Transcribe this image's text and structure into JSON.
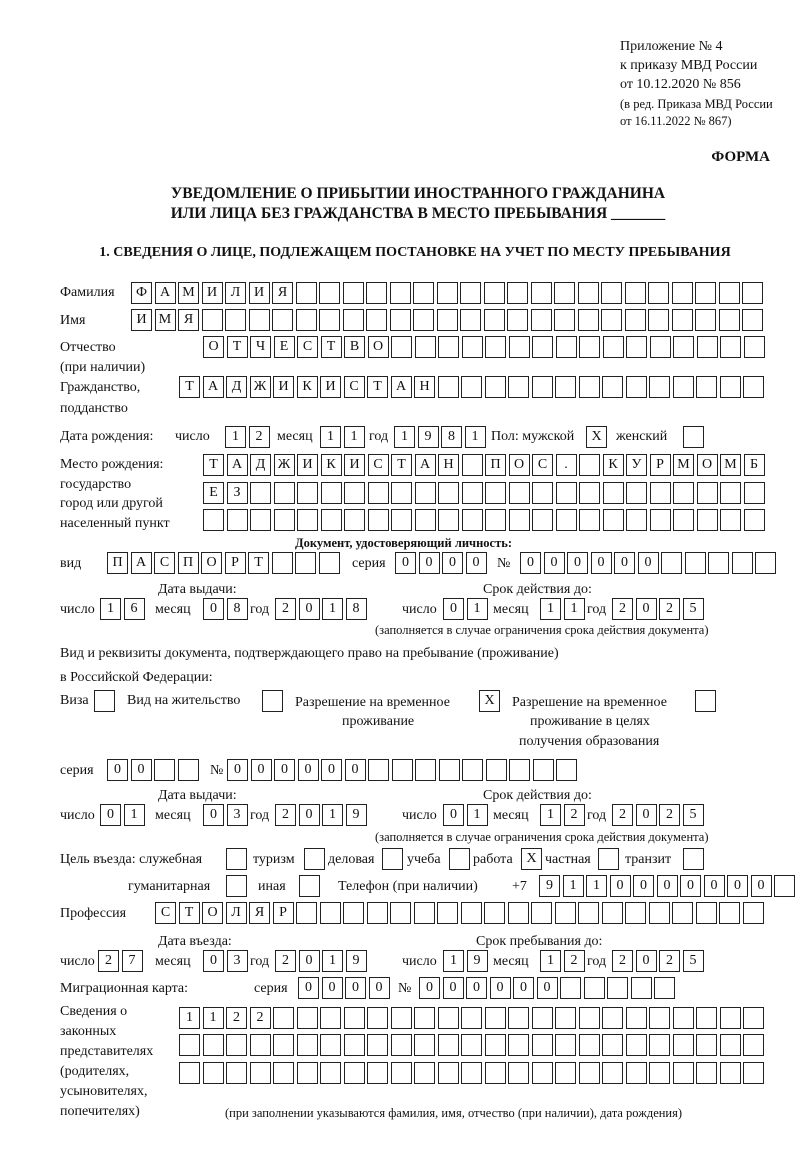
{
  "header": {
    "appendix": "Приложение № 4",
    "order": "к приказу МВД России",
    "order_date": "от 10.12.2020 № 856",
    "edition1": "(в ред. Приказа МВД России",
    "edition2": "от 16.11.2022 № 867)",
    "form": "ФОРМА",
    "title1": "УВЕДОМЛЕНИЕ О ПРИБЫТИИ ИНОСТРАННОГО ГРАЖДАНИНА",
    "title2": "ИЛИ ЛИЦА БЕЗ ГРАЖДАНСТВА В МЕСТО ПРЕБЫВАНИЯ _______",
    "section1": "1. СВЕДЕНИЯ О ЛИЦЕ, ПОДЛЕЖАЩЕМ ПОСТАНОВКЕ НА УЧЕТ ПО МЕСТУ ПРЕБЫВАНИЯ"
  },
  "labels": {
    "surname": "Фамилия",
    "name": "Имя",
    "patronymic": "Отчество",
    "patronymic2": "(при наличии)",
    "citizenship": "Гражданство,",
    "citizenship2": "подданство",
    "birth_date": "Дата рождения:",
    "day": "число",
    "month": "месяц",
    "year": "год",
    "sex": "Пол: мужской",
    "female": "женский",
    "birthplace": "Место рождения:",
    "birthplace2": "государство",
    "birthplace3": "город или другой",
    "birthplace4": "населенный пункт",
    "id_doc": "Документ, удостоверяющий личность:",
    "kind": "вид",
    "series": "серия",
    "number": "№",
    "issue_date": "Дата выдачи:",
    "valid_until": "Срок действия до:",
    "validity_note": "(заполняется в случае ограничения срока действия документа)",
    "stay_doc1": "Вид и реквизиты документа, подтверждающего право на пребывание (проживание)",
    "stay_doc2": "в Российской Федерации:",
    "visa": "Виза",
    "residence": "Вид на жительство",
    "temp1": "Разрешение на временное",
    "temp2": "проживание",
    "edu1": "Разрешение на временное",
    "edu2": "проживание в целях",
    "edu3": "получения образования",
    "purpose": "Цель въезда: служебная",
    "tourism": "туризм",
    "business": "деловая",
    "study": "учеба",
    "work": "работа",
    "private": "частная",
    "transit": "транзит",
    "humanitarian": "гуманитарная",
    "other": "иная",
    "phone": "Телефон (при наличии)",
    "phone_prefix": "+7",
    "profession": "Профессия",
    "entry_date": "Дата въезда:",
    "stay_until": "Срок пребывания до:",
    "migration_card": "Миграционная карта:",
    "reps1": "Сведения о",
    "reps2": "законных",
    "reps3": "представителях",
    "reps4": "(родителях,",
    "reps5": "усыновителях,",
    "reps6": "попечителях)",
    "reps_note": "(при заполнении указываются фамилия, имя, отчество (при наличии), дата рождения)"
  },
  "person": {
    "surname": "ФАМИЛИЯ",
    "name": "ИМЯ",
    "patronymic": "ОТЧЕСТВО",
    "citizenship": "ТАДЖИКИСТАН",
    "birth_day": "12",
    "birth_month": "11",
    "birth_year": "1981",
    "sex_male": "X",
    "sex_female": "",
    "birthplace1": "ТАДЖИКИСТАН ПОС. КУРМОМБ",
    "birthplace2": "ЕЗ",
    "birthplace3": "",
    "profession": "СТОЛЯР",
    "phone": "9110000000"
  },
  "id_document": {
    "kind": "ПАСПОРТ",
    "series": "0000",
    "number": "000000",
    "issue_day": "16",
    "issue_month": "08",
    "issue_year": "2018",
    "valid_day": "01",
    "valid_month": "11",
    "valid_year": "2025"
  },
  "stay_document": {
    "visa": "",
    "residence": "",
    "temp_residence": "X",
    "temp_residence_edu": "",
    "series": "00",
    "number": "000000",
    "issue_day": "01",
    "issue_month": "03",
    "issue_year": "2019",
    "valid_day": "01",
    "valid_month": "12",
    "valid_year": "2025"
  },
  "purpose": {
    "official": "",
    "tourism": "",
    "business": "",
    "study": "",
    "work": "X",
    "private": "",
    "transit": "",
    "humanitarian": "",
    "other": ""
  },
  "entry": {
    "day": "27",
    "month": "03",
    "year": "2019",
    "until_day": "19",
    "until_month": "12",
    "until_year": "2025"
  },
  "migration_card": {
    "series": "0000",
    "number": "000000"
  },
  "representatives": {
    "row1": "1122",
    "row2": "",
    "row3": ""
  }
}
